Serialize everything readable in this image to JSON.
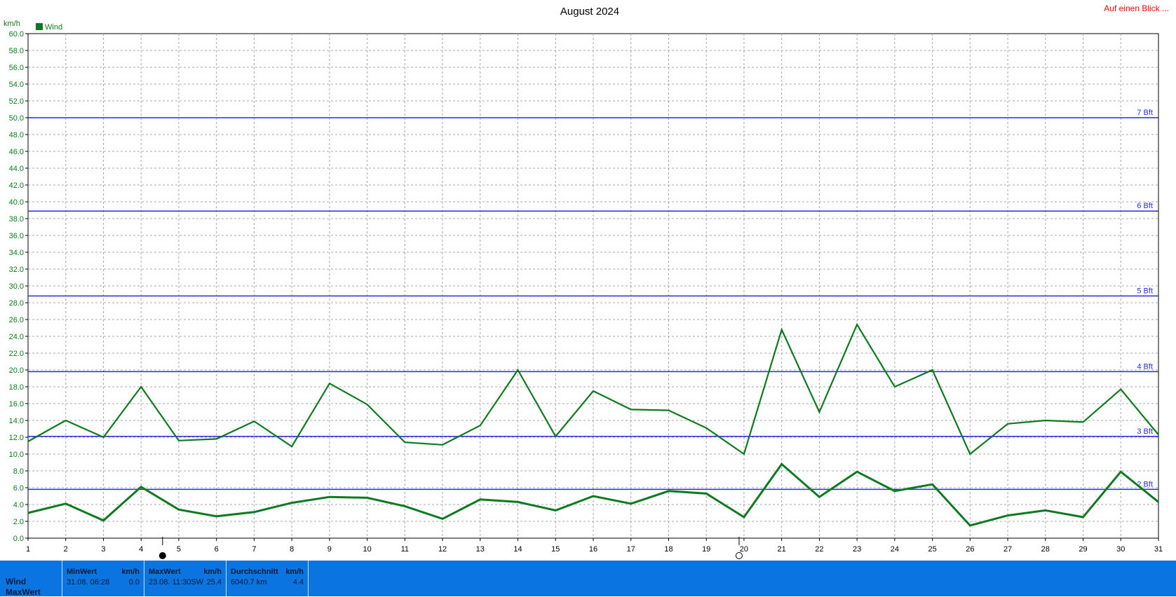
{
  "link_label": "Auf einen Blick ...",
  "colors": {
    "series": "#0e7a1f",
    "bft_line": "#2a2ae6",
    "panel": "#0a74e0",
    "link": "#ff0000"
  },
  "chart_data": {
    "type": "line",
    "title": "August 2024",
    "ylabel": "km/h",
    "xlabel": "",
    "ylim": [
      0,
      60
    ],
    "y_ticks": [
      "0.0",
      "2.0",
      "4.0",
      "6.0",
      "8.0",
      "10.0",
      "12.0",
      "14.0",
      "16.0",
      "18.0",
      "20.0",
      "22.0",
      "24.0",
      "26.0",
      "28.0",
      "30.0",
      "32.0",
      "34.0",
      "36.0",
      "38.0",
      "40.0",
      "42.0",
      "44.0",
      "46.0",
      "48.0",
      "50.0",
      "52.0",
      "54.0",
      "56.0",
      "58.0",
      "60.0"
    ],
    "x": [
      1,
      2,
      3,
      4,
      5,
      6,
      7,
      8,
      9,
      10,
      11,
      12,
      13,
      14,
      15,
      16,
      17,
      18,
      19,
      20,
      21,
      22,
      23,
      24,
      25,
      26,
      27,
      28,
      29,
      30,
      31
    ],
    "legend": [
      "Wind"
    ],
    "legend_position": "top-left",
    "grid": true,
    "series": [
      {
        "name": "Wind",
        "role": "max",
        "values": [
          11.5,
          14.0,
          12.0,
          18.0,
          11.6,
          11.8,
          13.9,
          10.9,
          18.4,
          15.9,
          11.4,
          11.1,
          13.4,
          20.0,
          12.1,
          17.5,
          15.3,
          15.2,
          13.1,
          10.0,
          24.8,
          15.0,
          25.4,
          18.0,
          20.0,
          10.0,
          13.6,
          14.0,
          13.8,
          17.7,
          12.3
        ]
      },
      {
        "name": "",
        "role": "average",
        "values": [
          3.0,
          4.1,
          2.1,
          6.1,
          3.4,
          2.6,
          3.1,
          4.2,
          4.9,
          4.8,
          3.8,
          2.3,
          4.6,
          4.3,
          3.3,
          5.0,
          4.1,
          5.6,
          5.3,
          2.5,
          8.8,
          4.9,
          7.9,
          5.6,
          6.4,
          1.5,
          2.7,
          3.3,
          2.5,
          7.9,
          4.3
        ]
      }
    ],
    "reference_lines": [
      {
        "label": "2 Bft",
        "value": 5.8
      },
      {
        "label": "3 Bft",
        "value": 12.1
      },
      {
        "label": "4 Bft",
        "value": 19.8
      },
      {
        "label": "5 Bft",
        "value": 28.8
      },
      {
        "label": "6 Bft",
        "value": 38.9
      },
      {
        "label": "7 Bft",
        "value": 50.0
      }
    ],
    "moon_markers": [
      {
        "day": 4.57,
        "phase": "new"
      },
      {
        "day": 19.87,
        "phase": "full"
      }
    ]
  },
  "stats": {
    "row_labels": [
      "Wind",
      "MaxWert"
    ],
    "min": {
      "header": "MinWert",
      "unit": "km/h",
      "when": "31.08.  06:28",
      "value": "0.0"
    },
    "max": {
      "header": "MaxWert",
      "unit": "km/h",
      "when": "23.08.  11:30SW",
      "value": "25.4"
    },
    "avg": {
      "header": "Durchschnitt",
      "unit": "km/h",
      "when": "6040.7 km",
      "value": "4.4"
    }
  }
}
